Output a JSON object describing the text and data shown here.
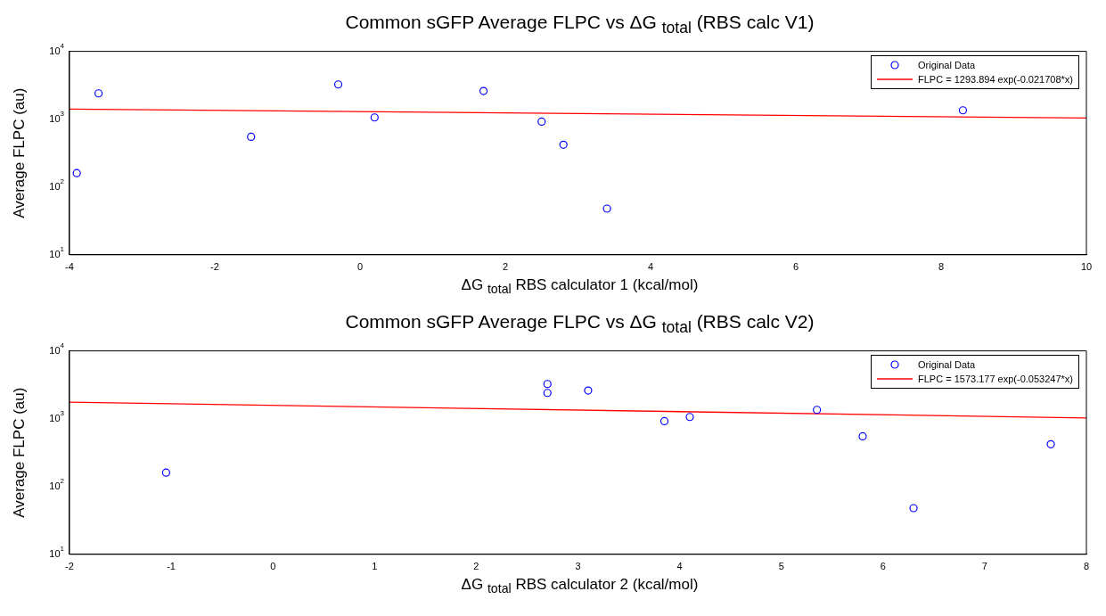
{
  "chart_data": [
    {
      "type": "scatter",
      "title": "Common sGFP Average FLPC vs ΔG $_{total}$ (RBS calc V1)",
      "xlabel": "ΔG $_{total}$ RBS calculator 1 (kcal/mol)",
      "ylabel": "Average FLPC (au)",
      "xlim": [
        -4,
        10
      ],
      "xticks": [
        -4,
        -2,
        0,
        2,
        4,
        6,
        8,
        10
      ],
      "ylim": [
        10,
        10000
      ],
      "yticks": [
        {
          "value": 10,
          "label": "10$^{1}$"
        },
        {
          "value": 100,
          "label": "10$^{2}$"
        },
        {
          "value": 1000,
          "label": "10$^{3}$"
        },
        {
          "value": 10000,
          "label": "10$^{4}$"
        }
      ],
      "log": "y",
      "grid": false,
      "legend": "top right",
      "series": [
        {
          "name": "Original Data",
          "color": "#0000ff",
          "marker": "circle",
          "x": [
            -3.9,
            -3.6,
            -1.5,
            -0.3,
            0.2,
            1.7,
            2.5,
            2.8,
            3.4,
            8.3
          ],
          "values": [
            160,
            2400,
            550,
            3250,
            1060,
            2600,
            920,
            420,
            48,
            1350
          ]
        },
        {
          "name": "FLPC = 1293.894 exp(-0.021708*x)",
          "type": "line",
          "color": "#ff0000",
          "marker": "none",
          "line_style": "solid",
          "x": [
            -4,
            10
          ],
          "values": [
            1411,
            1041
          ]
        }
      ]
    },
    {
      "type": "scatter",
      "title": "Common sGFP Average FLPC vs ΔG $_{total}$ (RBS calc V2)",
      "xlabel": "ΔG $_{total}$ RBS calculator 2 (kcal/mol)",
      "ylabel": "Average FLPC (au)",
      "xlim": [
        -2,
        8
      ],
      "xticks": [
        -2,
        -1,
        0,
        1,
        2,
        3,
        4,
        5,
        6,
        7,
        8
      ],
      "ylim": [
        10,
        10000
      ],
      "yticks": [
        {
          "value": 10,
          "label": "10$^{1}$"
        },
        {
          "value": 100,
          "label": "10$^{2}$"
        },
        {
          "value": 1000,
          "label": "10$^{3}$"
        },
        {
          "value": 10000,
          "label": "10$^{4}$"
        }
      ],
      "log": "y",
      "grid": false,
      "legend": "top right",
      "series": [
        {
          "name": "Original Data",
          "color": "#0000ff",
          "marker": "circle",
          "x": [
            -1.05,
            2.7,
            2.7,
            3.1,
            3.85,
            4.1,
            5.35,
            5.8,
            6.3,
            7.65
          ],
          "values": [
            160,
            3250,
            2400,
            2600,
            920,
            1060,
            1350,
            550,
            48,
            420
          ]
        },
        {
          "name": "FLPC = 1573.177 exp(-0.053247*x)",
          "type": "line",
          "color": "#ff0000",
          "marker": "none",
          "line_style": "solid",
          "x": [
            -2,
            8
          ],
          "values": [
            1750,
            1027
          ]
        }
      ]
    }
  ]
}
